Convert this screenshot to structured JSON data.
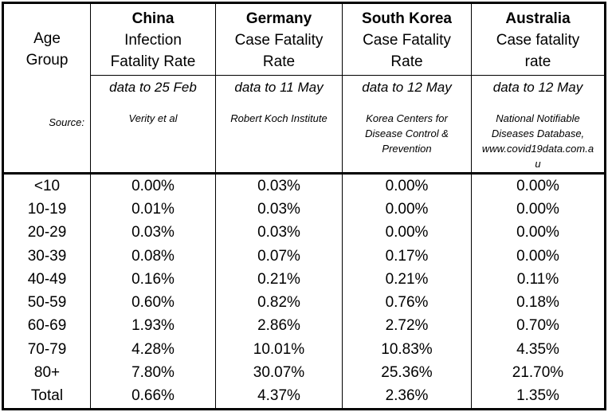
{
  "colors": {
    "border": "#000000",
    "background": "#ffffff",
    "text": "#000000"
  },
  "header": {
    "age_group_line1": "Age",
    "age_group_line2": "Group",
    "source_label": "Source:"
  },
  "columns": [
    {
      "country": "China",
      "metric_line1": "Infection",
      "metric_line2": "Fatality Rate",
      "data_to": "data to 25 Feb",
      "source": "Verity et al"
    },
    {
      "country": "Germany",
      "metric_line1": "Case Fatality",
      "metric_line2": "Rate",
      "data_to": "data to 11 May",
      "source": "Robert Koch Institute"
    },
    {
      "country": "South Korea",
      "metric_line1": "Case Fatality",
      "metric_line2": "Rate",
      "data_to": "data to 12 May",
      "source": "Korea Centers for Disease Control & Prevention"
    },
    {
      "country": "Australia",
      "metric_line1": "Case fatality",
      "metric_line2": "rate",
      "data_to": "data to 12 May",
      "source": "National Notifiable Diseases Database, www.covid19data.com.au"
    }
  ],
  "rows": [
    {
      "age": "<10",
      "values": [
        "0.00%",
        "0.03%",
        "0.00%",
        "0.00%"
      ]
    },
    {
      "age": "10-19",
      "values": [
        "0.01%",
        "0.03%",
        "0.00%",
        "0.00%"
      ]
    },
    {
      "age": "20-29",
      "values": [
        "0.03%",
        "0.03%",
        "0.00%",
        "0.00%"
      ]
    },
    {
      "age": "30-39",
      "values": [
        "0.08%",
        "0.07%",
        "0.17%",
        "0.00%"
      ]
    },
    {
      "age": "40-49",
      "values": [
        "0.16%",
        "0.21%",
        "0.21%",
        "0.11%"
      ]
    },
    {
      "age": "50-59",
      "values": [
        "0.60%",
        "0.82%",
        "0.76%",
        "0.18%"
      ]
    },
    {
      "age": "60-69",
      "values": [
        "1.93%",
        "2.86%",
        "2.72%",
        "0.70%"
      ]
    },
    {
      "age": "70-79",
      "values": [
        "4.28%",
        "10.01%",
        "10.83%",
        "4.35%"
      ]
    },
    {
      "age": "80+",
      "values": [
        "7.80%",
        "30.07%",
        "25.36%",
        "21.70%"
      ]
    },
    {
      "age": "Total",
      "values": [
        "0.66%",
        "4.37%",
        "2.36%",
        "1.35%"
      ]
    }
  ],
  "chart_data": {
    "type": "table",
    "title": "",
    "categories": [
      "<10",
      "10-19",
      "20-29",
      "30-39",
      "40-49",
      "50-59",
      "60-69",
      "70-79",
      "80+",
      "Total"
    ],
    "unit": "percent",
    "series": [
      {
        "name": "China Infection Fatality Rate",
        "data_to": "data to 25 Feb",
        "source": "Verity et al",
        "values": [
          0.0,
          0.01,
          0.03,
          0.08,
          0.16,
          0.6,
          1.93,
          4.28,
          7.8,
          0.66
        ]
      },
      {
        "name": "Germany Case Fatality Rate",
        "data_to": "data to 11 May",
        "source": "Robert Koch Institute",
        "values": [
          0.03,
          0.03,
          0.03,
          0.07,
          0.21,
          0.82,
          2.86,
          10.01,
          30.07,
          4.37
        ]
      },
      {
        "name": "South Korea Case Fatality Rate",
        "data_to": "data to 12 May",
        "source": "Korea Centers for Disease Control & Prevention",
        "values": [
          0.0,
          0.0,
          0.0,
          0.17,
          0.21,
          0.76,
          2.72,
          10.83,
          25.36,
          2.36
        ]
      },
      {
        "name": "Australia Case fatality rate",
        "data_to": "data to 12 May",
        "source": "National Notifiable Diseases Database, www.covid19data.com.au",
        "values": [
          0.0,
          0.0,
          0.0,
          0.0,
          0.11,
          0.18,
          0.7,
          4.35,
          21.7,
          1.35
        ]
      }
    ]
  }
}
